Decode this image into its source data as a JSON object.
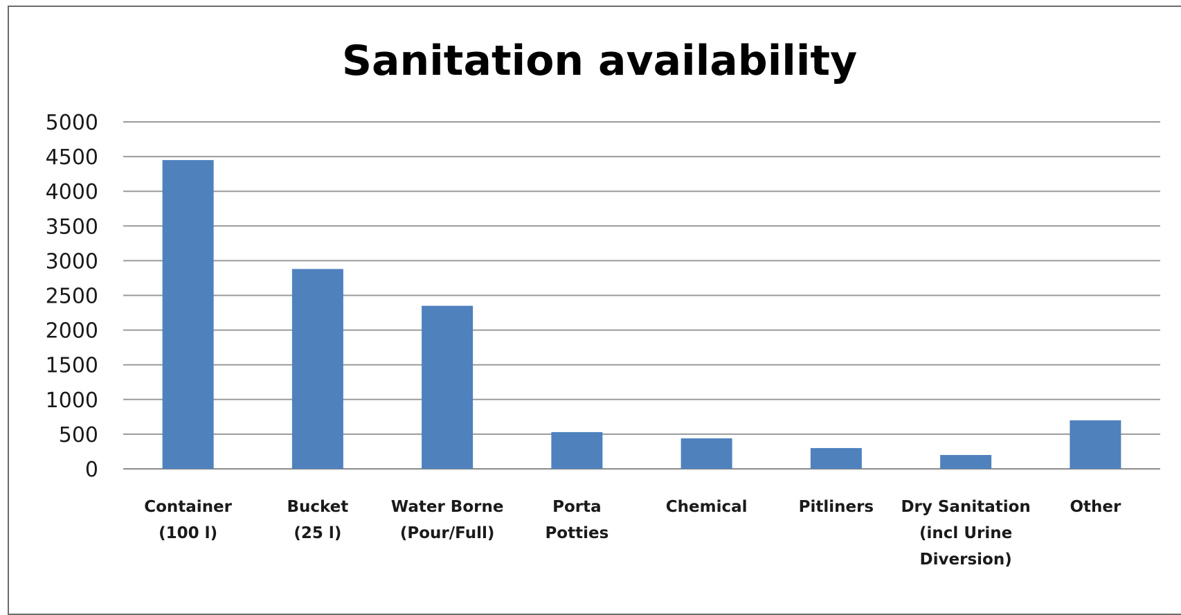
{
  "chart_data": {
    "type": "bar",
    "title": "Sanitation availability",
    "xlabel": "",
    "ylabel": "",
    "categories": [
      [
        "Container",
        "(100 l)"
      ],
      [
        "Bucket",
        "(25 l)"
      ],
      [
        "Water Borne",
        "(Pour/Full)"
      ],
      [
        "Porta",
        "Potties"
      ],
      [
        "Chemical"
      ],
      [
        "Pitliners"
      ],
      [
        "Dry Sanitation",
        "(incl Urine",
        "Diversion)"
      ],
      [
        "Other"
      ]
    ],
    "values": [
      4450,
      2880,
      2350,
      530,
      440,
      300,
      200,
      700
    ],
    "ylim": [
      0,
      5000
    ],
    "yticks": [
      0,
      500,
      1000,
      1500,
      2000,
      2500,
      3000,
      3500,
      4000,
      4500,
      5000
    ],
    "grid": true,
    "legend": "none",
    "bar_color": "#4f81bd"
  }
}
